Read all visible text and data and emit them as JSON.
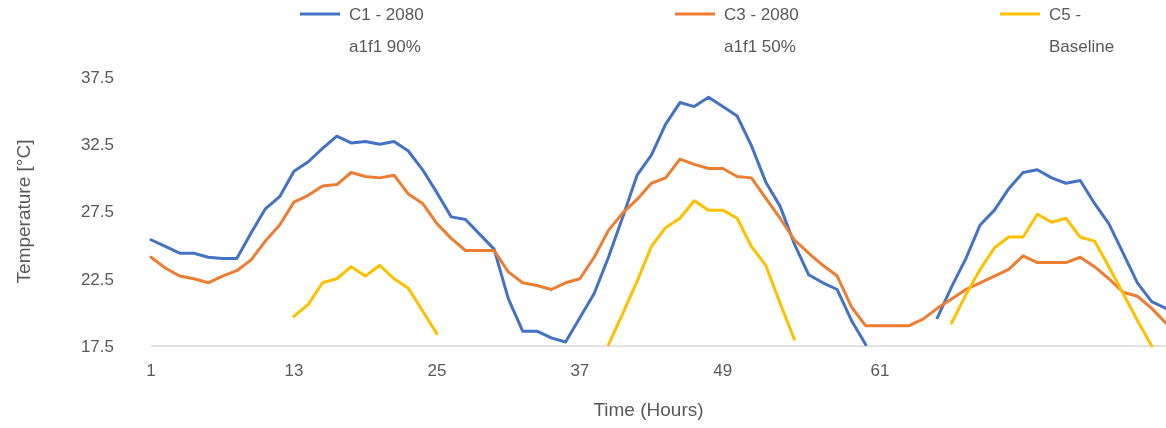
{
  "chart_data": {
    "type": "line",
    "xlabel": "Time (Hours)",
    "ylabel": "Temperature [°C]",
    "categories": [
      "1",
      null,
      null,
      null,
      null,
      null,
      null,
      null,
      null,
      null,
      "13",
      null,
      null,
      null,
      null,
      null,
      null,
      null,
      null,
      null,
      "25",
      null,
      null,
      null,
      null,
      null,
      null,
      null,
      null,
      null,
      "37",
      null,
      null,
      null,
      null,
      null,
      null,
      null,
      null,
      null,
      "49",
      null,
      null,
      null,
      null,
      null,
      null,
      null,
      null,
      null,
      null,
      "61",
      null,
      null,
      null,
      null,
      null,
      null,
      null,
      null,
      null,
      null,
      null,
      null,
      null,
      null,
      null,
      null,
      null,
      null,
      null,
      null
    ],
    "ylim": [
      17.5,
      37.5
    ],
    "yticks": [
      17.5,
      22.5,
      27.5,
      32.5,
      37.5
    ],
    "grid": false,
    "legend": "top",
    "line_style": "solid",
    "marker": "none",
    "series": [
      {
        "name": "C1 - 2080\na1f1 90%",
        "color": "#4472c4",
        "values": [
          25.4,
          24.9,
          24.4,
          24.4,
          24.1,
          24.0,
          24.0,
          25.9,
          27.7,
          28.6,
          30.5,
          31.2,
          32.2,
          33.1,
          32.6,
          32.7,
          32.5,
          32.7,
          32.0,
          30.6,
          28.9,
          27.1,
          26.9,
          25.8,
          24.7,
          21.0,
          18.6,
          18.6,
          18.1,
          17.8,
          19.6,
          21.4,
          24.1,
          27.1,
          30.2,
          31.7,
          34.0,
          35.6,
          35.3,
          36.0,
          35.3,
          34.6,
          32.4,
          29.7,
          27.9,
          25.1,
          22.8,
          22.2,
          21.7,
          19.4,
          17.6,
          null,
          null,
          null,
          null,
          19.6,
          21.9,
          24.0,
          26.5,
          27.6,
          29.2,
          30.4,
          30.6,
          30.0,
          29.6,
          29.8,
          28.1,
          26.6,
          24.4,
          22.2,
          20.8,
          20.3
        ]
      },
      {
        "name": "C3 - 2080\na1f1 50%",
        "color": "#ed7d31",
        "values": [
          24.1,
          23.3,
          22.7,
          22.5,
          22.2,
          22.7,
          23.1,
          23.9,
          25.3,
          26.5,
          28.2,
          28.7,
          29.4,
          29.5,
          30.4,
          30.1,
          30.0,
          30.2,
          28.8,
          28.1,
          26.6,
          25.5,
          24.6,
          24.6,
          24.6,
          23.0,
          22.2,
          22.0,
          21.7,
          22.2,
          22.5,
          24.1,
          26.1,
          27.4,
          28.4,
          29.6,
          30.0,
          31.4,
          31.0,
          30.7,
          30.7,
          30.1,
          30.0,
          28.5,
          27.0,
          25.4,
          24.4,
          23.5,
          22.7,
          20.4,
          19.0,
          19.0,
          19.0,
          19.0,
          19.5,
          20.3,
          21.0,
          21.7,
          22.2,
          22.7,
          23.2,
          24.2,
          23.7,
          23.7,
          23.7,
          24.1,
          23.4,
          22.5,
          21.5,
          21.2,
          20.3,
          19.2
        ]
      },
      {
        "name": "C5 -\nBaseline",
        "color": "#ffc000",
        "values": [
          null,
          null,
          null,
          null,
          null,
          null,
          null,
          null,
          null,
          null,
          19.7,
          20.6,
          22.2,
          22.5,
          23.4,
          22.7,
          23.5,
          22.5,
          21.8,
          20.1,
          18.4,
          null,
          null,
          null,
          null,
          null,
          null,
          null,
          null,
          null,
          null,
          null,
          17.6,
          19.9,
          22.3,
          24.9,
          26.3,
          27.0,
          28.3,
          27.6,
          27.6,
          27.0,
          24.9,
          23.5,
          20.7,
          18.0,
          null,
          null,
          null,
          null,
          null,
          null,
          null,
          null,
          null,
          null,
          19.2,
          21.3,
          23.2,
          24.8,
          25.6,
          25.6,
          27.3,
          26.7,
          27.0,
          25.6,
          25.3,
          23.4,
          21.4,
          19.4,
          17.5,
          null
        ]
      }
    ]
  }
}
